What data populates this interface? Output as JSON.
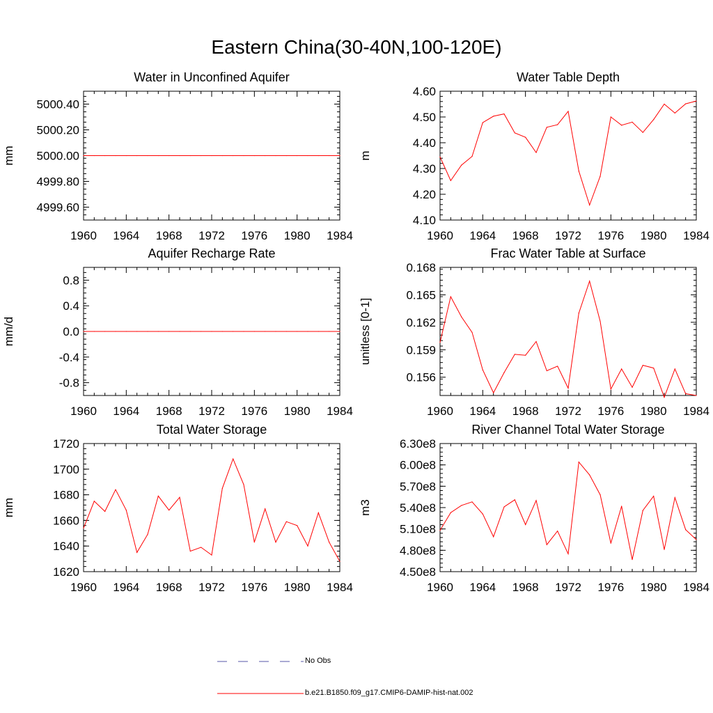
{
  "page": {
    "title": "Eastern China(30-40N,100-120E)"
  },
  "legend": {
    "items": [
      {
        "label": "No Obs",
        "color": "#5555aa",
        "style": "dashed"
      },
      {
        "label": "b.e21.B1850.f09_g17.CMIP6-DAMIP-hist-nat.002",
        "color": "#ff0000",
        "style": "solid"
      }
    ]
  },
  "chart_data": [
    {
      "type": "line",
      "title": "Water in Unconfined Aquifer",
      "ylabel": "mm",
      "xlim": [
        1960,
        1984
      ],
      "ylim": [
        4999.5,
        5000.5
      ],
      "x_ticks": [
        1960,
        1964,
        1968,
        1972,
        1976,
        1980,
        1984
      ],
      "y_ticks": [
        4999.6,
        4999.8,
        5000.0,
        5000.2,
        5000.4
      ],
      "y_tick_labels": [
        "4999.60",
        "4999.80",
        "5000.00",
        "5000.20",
        "5000.40"
      ],
      "series": [
        {
          "color": "#ff0000",
          "x": [
            1960,
            1961,
            1962,
            1963,
            1964,
            1965,
            1966,
            1967,
            1968,
            1969,
            1970,
            1971,
            1972,
            1973,
            1974,
            1975,
            1976,
            1977,
            1978,
            1979,
            1980,
            1981,
            1982,
            1983,
            1984
          ],
          "values": [
            5000,
            5000,
            5000,
            5000,
            5000,
            5000,
            5000,
            5000,
            5000,
            5000,
            5000,
            5000,
            5000,
            5000,
            5000,
            5000,
            5000,
            5000,
            5000,
            5000,
            5000,
            5000,
            5000,
            5000,
            5000
          ]
        }
      ]
    },
    {
      "type": "line",
      "title": "Water Table Depth",
      "ylabel": "m",
      "xlim": [
        1960,
        1984
      ],
      "ylim": [
        4.1,
        4.6
      ],
      "x_ticks": [
        1960,
        1964,
        1968,
        1972,
        1976,
        1980,
        1984
      ],
      "y_ticks": [
        4.1,
        4.2,
        4.3,
        4.4,
        4.5,
        4.6
      ],
      "y_tick_labels": [
        "4.10",
        "4.20",
        "4.30",
        "4.40",
        "4.50",
        "4.60"
      ],
      "series": [
        {
          "color": "#ff0000",
          "x": [
            1960,
            1961,
            1962,
            1963,
            1964,
            1965,
            1966,
            1967,
            1968,
            1969,
            1970,
            1971,
            1972,
            1973,
            1974,
            1975,
            1976,
            1977,
            1978,
            1979,
            1980,
            1981,
            1982,
            1983,
            1984
          ],
          "values": [
            4.345,
            4.253,
            4.313,
            4.347,
            4.478,
            4.503,
            4.512,
            4.438,
            4.421,
            4.362,
            4.46,
            4.47,
            4.522,
            4.29,
            4.158,
            4.27,
            4.5,
            4.468,
            4.48,
            4.44,
            4.49,
            4.55,
            4.515,
            4.551,
            4.562
          ]
        }
      ]
    },
    {
      "type": "line",
      "title": "Aquifer Recharge Rate",
      "ylabel": "mm/d",
      "xlim": [
        1960,
        1984
      ],
      "ylim": [
        -1.0,
        1.0
      ],
      "x_ticks": [
        1960,
        1964,
        1968,
        1972,
        1976,
        1980,
        1984
      ],
      "y_ticks": [
        -0.8,
        -0.4,
        0.0,
        0.4,
        0.8
      ],
      "y_tick_labels": [
        "-0.8",
        "-0.4",
        "0.0",
        "0.4",
        "0.8"
      ],
      "series": [
        {
          "color": "#ff0000",
          "x": [
            1960,
            1961,
            1962,
            1963,
            1964,
            1965,
            1966,
            1967,
            1968,
            1969,
            1970,
            1971,
            1972,
            1973,
            1974,
            1975,
            1976,
            1977,
            1978,
            1979,
            1980,
            1981,
            1982,
            1983,
            1984
          ],
          "values": [
            0,
            0,
            0,
            0,
            0,
            0,
            0,
            0,
            0,
            0,
            0,
            0,
            0,
            0,
            0,
            0,
            0,
            0,
            0,
            0,
            0,
            0,
            0,
            0,
            0
          ]
        }
      ]
    },
    {
      "type": "line",
      "title": "Frac Water Table at Surface",
      "ylabel": "unitless [0-1]",
      "xlim": [
        1960,
        1984
      ],
      "ylim": [
        0.154,
        0.168
      ],
      "x_ticks": [
        1960,
        1964,
        1968,
        1972,
        1976,
        1980,
        1984
      ],
      "y_ticks": [
        0.156,
        0.159,
        0.162,
        0.165,
        0.168
      ],
      "y_tick_labels": [
        "0.156",
        "0.159",
        "0.162",
        "0.165",
        "0.168"
      ],
      "series": [
        {
          "color": "#ff0000",
          "x": [
            1960,
            1961,
            1962,
            1963,
            1964,
            1965,
            1966,
            1967,
            1968,
            1969,
            1970,
            1971,
            1972,
            1973,
            1974,
            1975,
            1976,
            1977,
            1978,
            1979,
            1980,
            1981,
            1982,
            1983,
            1984
          ],
          "values": [
            0.1598,
            0.1648,
            0.1626,
            0.1609,
            0.1568,
            0.1543,
            0.1565,
            0.1585,
            0.1584,
            0.1599,
            0.1567,
            0.1572,
            0.1548,
            0.163,
            0.1665,
            0.1621,
            0.1547,
            0.1569,
            0.1549,
            0.1573,
            0.157,
            0.1538,
            0.1569,
            0.1542,
            0.154
          ]
        }
      ]
    },
    {
      "type": "line",
      "title": "Total Water Storage",
      "ylabel": "mm",
      "xlim": [
        1960,
        1984
      ],
      "ylim": [
        1620,
        1720
      ],
      "x_ticks": [
        1960,
        1964,
        1968,
        1972,
        1976,
        1980,
        1984
      ],
      "y_ticks": [
        1620,
        1640,
        1660,
        1680,
        1700,
        1720
      ],
      "y_tick_labels": [
        "1620",
        "1640",
        "1660",
        "1680",
        "1700",
        "1720"
      ],
      "series": [
        {
          "color": "#ff0000",
          "x": [
            1960,
            1961,
            1962,
            1963,
            1964,
            1965,
            1966,
            1967,
            1968,
            1969,
            1970,
            1971,
            1972,
            1973,
            1974,
            1975,
            1976,
            1977,
            1978,
            1979,
            1980,
            1981,
            1982,
            1983,
            1984
          ],
          "values": [
            1654,
            1675,
            1667,
            1684,
            1668,
            1635,
            1649,
            1679,
            1668,
            1678,
            1636,
            1639,
            1633,
            1685,
            1708,
            1688,
            1643,
            1669,
            1643,
            1659,
            1656,
            1640,
            1666,
            1643,
            1628
          ]
        }
      ]
    },
    {
      "type": "line",
      "title": "River Channel Total Water Storage",
      "ylabel": "m3",
      "xlim": [
        1960,
        1984
      ],
      "ylim": [
        450000000,
        630000000
      ],
      "x_ticks": [
        1960,
        1964,
        1968,
        1972,
        1976,
        1980,
        1984
      ],
      "y_ticks": [
        450000000,
        480000000,
        510000000,
        540000000,
        570000000,
        600000000,
        630000000
      ],
      "y_tick_labels": [
        "4.50e8",
        "4.80e8",
        "5.10e8",
        "5.40e8",
        "5.70e8",
        "6.00e8",
        "6.30e8"
      ],
      "series": [
        {
          "color": "#ff0000",
          "x": [
            1960,
            1961,
            1962,
            1963,
            1964,
            1965,
            1966,
            1967,
            1968,
            1969,
            1970,
            1971,
            1972,
            1973,
            1974,
            1975,
            1976,
            1977,
            1978,
            1979,
            1980,
            1981,
            1982,
            1983,
            1984
          ],
          "values": [
            508000000,
            533000000,
            543000000,
            548000000,
            531000000,
            499000000,
            541000000,
            551000000,
            516000000,
            550000000,
            488000000,
            507000000,
            475000000,
            604000000,
            586000000,
            558000000,
            490000000,
            542000000,
            467000000,
            536000000,
            556000000,
            481000000,
            554000000,
            509000000,
            495000000
          ]
        }
      ]
    }
  ]
}
